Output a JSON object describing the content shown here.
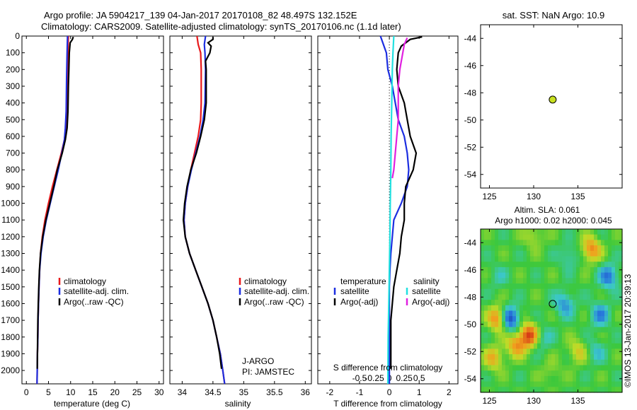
{
  "header": {
    "line1": "Argo profile: JA 5904217_139 04-Jan-2017 20170108_82 48.497S 132.152E",
    "line2": "Climatology: CARS2009. Satellite-adjusted climatology: synTS_20170106.nc (1.1d later)"
  },
  "colors": {
    "climatology": "#e8191c",
    "satellite": "#1c2ee0",
    "argo": "#000000",
    "sat_salinity": "#22e0e0",
    "argo_salinity_adj": "#e020e0"
  },
  "chart_data": [
    {
      "type": "line",
      "xlabel": "temperature (deg C)",
      "xlim": [
        -1,
        31
      ],
      "xticks": [
        0,
        5,
        10,
        15,
        20,
        25,
        30
      ],
      "ylim": [
        2080,
        0
      ],
      "yticks": [
        0,
        100,
        200,
        300,
        400,
        500,
        600,
        700,
        800,
        900,
        1000,
        1100,
        1200,
        1300,
        1400,
        1500,
        1600,
        1700,
        1800,
        1900,
        2000
      ],
      "legend": [
        "climatology",
        "satellite-adj. clim.",
        "Argo(..raw -QC)"
      ],
      "series": [
        {
          "name": "climatology",
          "color": "#e8191c",
          "points": [
            [
              9.5,
              0
            ],
            [
              9.4,
              100
            ],
            [
              9.3,
              250
            ],
            [
              9.1,
              450
            ],
            [
              8.9,
              550
            ],
            [
              8.6,
              620
            ],
            [
              7.9,
              700
            ],
            [
              6.9,
              800
            ],
            [
              5.9,
              900
            ],
            [
              5.0,
              1000
            ],
            [
              4.2,
              1100
            ],
            [
              3.6,
              1200
            ],
            [
              3.2,
              1300
            ],
            [
              3.0,
              1400
            ],
            [
              2.85,
              1500
            ],
            [
              2.75,
              1600
            ],
            [
              2.65,
              1700
            ],
            [
              2.6,
              1800
            ],
            [
              2.5,
              1900
            ],
            [
              2.45,
              2000
            ],
            [
              2.4,
              2080
            ]
          ]
        },
        {
          "name": "satellite-adj. clim.",
          "color": "#1c2ee0",
          "points": [
            [
              9.3,
              0
            ],
            [
              9.2,
              100
            ],
            [
              9.1,
              250
            ],
            [
              9.0,
              450
            ],
            [
              8.8,
              550
            ],
            [
              8.6,
              620
            ],
            [
              8.0,
              700
            ],
            [
              7.2,
              800
            ],
            [
              6.3,
              900
            ],
            [
              5.4,
              1000
            ],
            [
              4.5,
              1100
            ],
            [
              3.8,
              1200
            ],
            [
              3.3,
              1300
            ],
            [
              3.0,
              1400
            ],
            [
              2.85,
              1500
            ],
            [
              2.75,
              1600
            ],
            [
              2.65,
              1700
            ],
            [
              2.6,
              1800
            ],
            [
              2.5,
              1900
            ],
            [
              2.45,
              2000
            ],
            [
              2.4,
              2080
            ]
          ]
        },
        {
          "name": "Argo(..raw -QC)",
          "color": "#000000",
          "points": [
            [
              10.6,
              5
            ],
            [
              10.4,
              20
            ],
            [
              9.9,
              40
            ],
            [
              9.7,
              100
            ],
            [
              9.6,
              200
            ],
            [
              9.5,
              300
            ],
            [
              9.4,
              450
            ],
            [
              9.2,
              550
            ],
            [
              8.8,
              620
            ],
            [
              8.1,
              700
            ],
            [
              7.0,
              800
            ],
            [
              6.2,
              900
            ],
            [
              5.3,
              1000
            ],
            [
              4.4,
              1100
            ],
            [
              3.7,
              1200
            ],
            [
              3.2,
              1300
            ],
            [
              2.95,
              1400
            ],
            [
              2.8,
              1500
            ],
            [
              2.7,
              1600
            ],
            [
              2.6,
              1700
            ],
            [
              2.55,
              1800
            ],
            [
              2.5,
              1900
            ],
            [
              2.45,
              1990
            ]
          ]
        }
      ]
    },
    {
      "type": "line",
      "xlabel": "salinity",
      "xlim": [
        33.8,
        36.1
      ],
      "xticks": [
        34,
        34.5,
        35,
        35.5,
        36
      ],
      "ylim": [
        2080,
        0
      ],
      "legend": [
        "climatology",
        "satellite-adj. clim.",
        "Argo(..raw -QC)"
      ],
      "annotations": [
        "J-ARGO",
        "PI: JAMSTEC"
      ],
      "series": [
        {
          "name": "climatology",
          "color": "#e8191c",
          "points": [
            [
              34.24,
              0
            ],
            [
              34.26,
              50
            ],
            [
              34.3,
              100
            ],
            [
              34.31,
              200
            ],
            [
              34.31,
              400
            ],
            [
              34.3,
              500
            ],
            [
              34.26,
              600
            ],
            [
              34.2,
              700
            ],
            [
              34.14,
              800
            ],
            [
              34.09,
              900
            ],
            [
              34.05,
              1000
            ],
            [
              34.03,
              1100
            ],
            [
              34.05,
              1200
            ],
            [
              34.12,
              1300
            ],
            [
              34.22,
              1400
            ],
            [
              34.32,
              1500
            ],
            [
              34.42,
              1600
            ],
            [
              34.5,
              1700
            ],
            [
              34.56,
              1800
            ],
            [
              34.62,
              1900
            ],
            [
              34.66,
              2000
            ],
            [
              34.69,
              2080
            ]
          ]
        },
        {
          "name": "satellite-adj. clim.",
          "color": "#1c2ee0",
          "points": [
            [
              34.38,
              0
            ],
            [
              34.36,
              50
            ],
            [
              34.37,
              100
            ],
            [
              34.38,
              200
            ],
            [
              34.37,
              400
            ],
            [
              34.34,
              500
            ],
            [
              34.29,
              600
            ],
            [
              34.22,
              700
            ],
            [
              34.15,
              800
            ],
            [
              34.09,
              900
            ],
            [
              34.05,
              1000
            ],
            [
              34.03,
              1100
            ],
            [
              34.05,
              1200
            ],
            [
              34.12,
              1300
            ],
            [
              34.22,
              1400
            ],
            [
              34.32,
              1500
            ],
            [
              34.42,
              1600
            ],
            [
              34.5,
              1700
            ],
            [
              34.56,
              1800
            ],
            [
              34.62,
              1900
            ],
            [
              34.66,
              2000
            ],
            [
              34.69,
              2080
            ]
          ]
        },
        {
          "name": "Argo(..raw -QC)",
          "color": "#000000",
          "points": [
            [
              34.5,
              5
            ],
            [
              34.5,
              20
            ],
            [
              34.42,
              40
            ],
            [
              34.47,
              60
            ],
            [
              34.45,
              100
            ],
            [
              34.38,
              150
            ],
            [
              34.39,
              200
            ],
            [
              34.39,
              400
            ],
            [
              34.36,
              500
            ],
            [
              34.3,
              600
            ],
            [
              34.23,
              700
            ],
            [
              34.14,
              800
            ],
            [
              34.08,
              900
            ],
            [
              34.04,
              1000
            ],
            [
              34.02,
              1100
            ],
            [
              34.05,
              1200
            ],
            [
              34.12,
              1300
            ],
            [
              34.22,
              1400
            ],
            [
              34.32,
              1500
            ],
            [
              34.42,
              1600
            ],
            [
              34.5,
              1700
            ],
            [
              34.56,
              1800
            ],
            [
              34.61,
              1900
            ],
            [
              34.64,
              1990
            ]
          ]
        }
      ]
    },
    {
      "type": "line",
      "xlabel": "T difference from climatology",
      "top_label": "S difference from climatology",
      "xlim": [
        -2.4,
        2.3
      ],
      "xticks": [
        -2,
        -1,
        0,
        1,
        2
      ],
      "s_ticks": [
        -0.5,
        -0.25,
        0,
        0.25,
        0.5
      ],
      "ylim": [
        2080,
        0
      ],
      "legend_headers": [
        "temperature",
        "salinity"
      ],
      "legend": [
        "satellite",
        "Argo(-adj)",
        "satellite",
        "Argo(-adj)"
      ],
      "series": [
        {
          "name": "satellite",
          "color": "#1c2ee0",
          "points": [
            [
              -0.3,
              0
            ],
            [
              -0.1,
              100
            ],
            [
              -0.05,
              200
            ],
            [
              0.1,
              300
            ],
            [
              0.2,
              400
            ],
            [
              0.3,
              500
            ],
            [
              0.5,
              600
            ],
            [
              0.6,
              700
            ],
            [
              0.65,
              800
            ],
            [
              0.6,
              900
            ],
            [
              0.4,
              1000
            ],
            [
              0.15,
              1100
            ],
            [
              0.1,
              1200
            ],
            [
              0.05,
              1300
            ],
            [
              0.02,
              1400
            ],
            [
              0,
              1500
            ],
            [
              0,
              2080
            ]
          ]
        },
        {
          "name": "Argo(-adj)",
          "color": "#000000",
          "points": [
            [
              1.1,
              5
            ],
            [
              0.7,
              20
            ],
            [
              0.4,
              60
            ],
            [
              0.3,
              100
            ],
            [
              0.25,
              200
            ],
            [
              0.3,
              300
            ],
            [
              0.5,
              400
            ],
            [
              0.6,
              500
            ],
            [
              0.7,
              600
            ],
            [
              0.9,
              700
            ],
            [
              0.8,
              800
            ],
            [
              0.55,
              900
            ],
            [
              0.5,
              1000
            ],
            [
              0.5,
              1100
            ],
            [
              0.4,
              1200
            ],
            [
              0.35,
              1300
            ],
            [
              0.25,
              1400
            ],
            [
              0.15,
              1500
            ],
            [
              0.1,
              1600
            ],
            [
              0.05,
              1700
            ],
            [
              0.05,
              1800
            ],
            [
              0.05,
              1990
            ]
          ]
        },
        {
          "name": "satellite",
          "color": "#22e0e0",
          "points": [
            [
              0.15,
              0
            ],
            [
              0.12,
              100
            ],
            [
              0.1,
              200
            ],
            [
              0.08,
              400
            ],
            [
              0.06,
              600
            ],
            [
              0.05,
              800
            ],
            [
              0.03,
              1000
            ],
            [
              0.02,
              1200
            ],
            [
              0.0,
              1400
            ],
            [
              -0.02,
              1600
            ],
            [
              -0.04,
              1800
            ],
            [
              -0.05,
              2080
            ]
          ]
        },
        {
          "name": "Argo(-adj)",
          "color": "#e020e0",
          "points": [
            [
              0.6,
              10
            ],
            [
              0.5,
              50
            ],
            [
              0.45,
              100
            ],
            [
              0.35,
              200
            ],
            [
              0.3,
              300
            ],
            [
              0.3,
              500
            ],
            [
              0.25,
              600
            ],
            [
              0.2,
              700
            ],
            [
              0.15,
              800
            ],
            [
              0.1,
              850
            ]
          ]
        }
      ]
    },
    {
      "type": "scatter",
      "title": "sat. SST: NaN Argo: 10.9",
      "xlim": [
        124,
        140
      ],
      "ylim": [
        -55,
        -43
      ],
      "xticks": [
        125,
        130,
        135
      ],
      "yticks": [
        -44,
        -46,
        -48,
        -50,
        -52,
        -54
      ],
      "points": [
        [
          132.15,
          -48.5
        ]
      ]
    },
    {
      "type": "heatmap",
      "title_line1": "Altim. SLA: 0.061",
      "title_line2": "Argo h1000: 0.02 h2000: 0.045",
      "xlim": [
        124,
        140
      ],
      "ylim": [
        -55,
        -43
      ],
      "xticks": [
        125,
        130,
        135
      ],
      "yticks": [
        -44,
        -46,
        -48,
        -50,
        -52,
        -54
      ],
      "points": [
        [
          132.15,
          -48.5
        ]
      ],
      "side_label": "©IMOS 13-Jan-2017 20:39:13"
    }
  ]
}
